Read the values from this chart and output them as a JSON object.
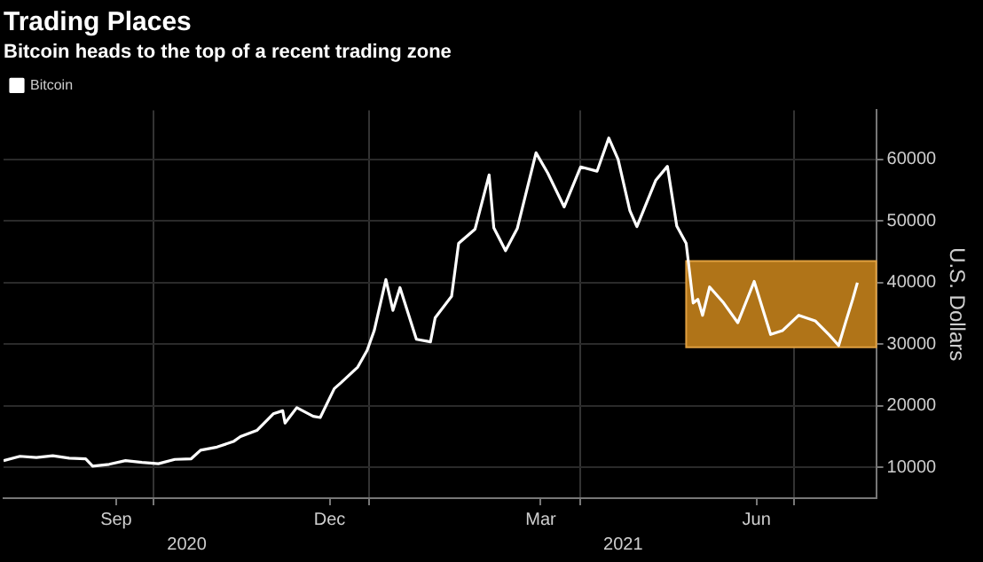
{
  "chart_data": {
    "type": "line",
    "title": "Trading Places",
    "subtitle": "Bitcoin heads to the top of a recent trading zone",
    "ylabel": "U.S. Dollars",
    "x": [
      "2020-07-29",
      "2020-08-05",
      "2020-08-12",
      "2020-08-19",
      "2020-08-26",
      "2020-09-02",
      "2020-09-05",
      "2020-09-12",
      "2020-09-19",
      "2020-09-26",
      "2020-10-03",
      "2020-10-10",
      "2020-10-17",
      "2020-10-21",
      "2020-10-28",
      "2020-11-04",
      "2020-11-07",
      "2020-11-14",
      "2020-11-21",
      "2020-11-25",
      "2020-11-26",
      "2020-12-01",
      "2020-12-08",
      "2020-12-11",
      "2020-12-17",
      "2020-12-20",
      "2020-12-27",
      "2020-12-31",
      "2021-01-03",
      "2021-01-08",
      "2021-01-11",
      "2021-01-14",
      "2021-01-21",
      "2021-01-27",
      "2021-01-29",
      "2021-02-05",
      "2021-02-08",
      "2021-02-15",
      "2021-02-21",
      "2021-02-23",
      "2021-02-28",
      "2021-03-05",
      "2021-03-13",
      "2021-03-18",
      "2021-03-25",
      "2021-04-01",
      "2021-04-08",
      "2021-04-13",
      "2021-04-17",
      "2021-04-22",
      "2021-04-25",
      "2021-05-03",
      "2021-05-08",
      "2021-05-12",
      "2021-05-16",
      "2021-05-19",
      "2021-05-21",
      "2021-05-23",
      "2021-05-26",
      "2021-06-01",
      "2021-06-07",
      "2021-06-14",
      "2021-06-21",
      "2021-06-26",
      "2021-07-03",
      "2021-07-10",
      "2021-07-16",
      "2021-07-20",
      "2021-07-23",
      "2021-07-26",
      "2021-07-28"
    ],
    "series": [
      {
        "name": "Bitcoin",
        "color": "#ffffff",
        "values": [
          11100,
          11800,
          11600,
          11900,
          11500,
          11400,
          10200,
          10500,
          11100,
          10800,
          10600,
          11300,
          11400,
          12800,
          13300,
          14200,
          15000,
          16000,
          18700,
          19200,
          17200,
          19700,
          18300,
          18100,
          22800,
          23800,
          26300,
          29000,
          32200,
          40500,
          35500,
          39200,
          30800,
          30400,
          34300,
          37800,
          46400,
          48700,
          57500,
          48900,
          45200,
          48800,
          61100,
          57800,
          52300,
          58800,
          58100,
          63500,
          60000,
          51700,
          49100,
          56600,
          58900,
          49200,
          46400,
          36700,
          37300,
          34700,
          39300,
          36700,
          33500,
          40200,
          31600,
          32200,
          34700,
          33800,
          31500,
          29800,
          33600,
          37300,
          40000
        ]
      }
    ],
    "xlim": [
      "2020-07-29",
      "2021-08-05"
    ],
    "xticks": [
      {
        "value": "2020-09-15",
        "label": "Sep"
      },
      {
        "value": "2020-10-01",
        "label": null
      },
      {
        "value": "2020-12-15",
        "label": "Dec"
      },
      {
        "value": "2021-01-01",
        "label": null
      },
      {
        "value": "2021-03-15",
        "label": "Mar"
      },
      {
        "value": "2021-04-01",
        "label": null
      },
      {
        "value": "2021-06-15",
        "label": "Jun"
      },
      {
        "value": "2021-07-01",
        "label": null
      }
    ],
    "ylim": [
      5000,
      68000
    ],
    "yticks": [
      10000,
      20000,
      30000,
      40000,
      50000,
      60000
    ],
    "bands": [
      {
        "axis": "y",
        "from": 29500,
        "to": 43500,
        "color": "#b07418"
      }
    ],
    "annotations": [
      "2020",
      "2021"
    ],
    "grid": true,
    "legend": "top left",
    "marker": "none",
    "line_style": "solid"
  }
}
